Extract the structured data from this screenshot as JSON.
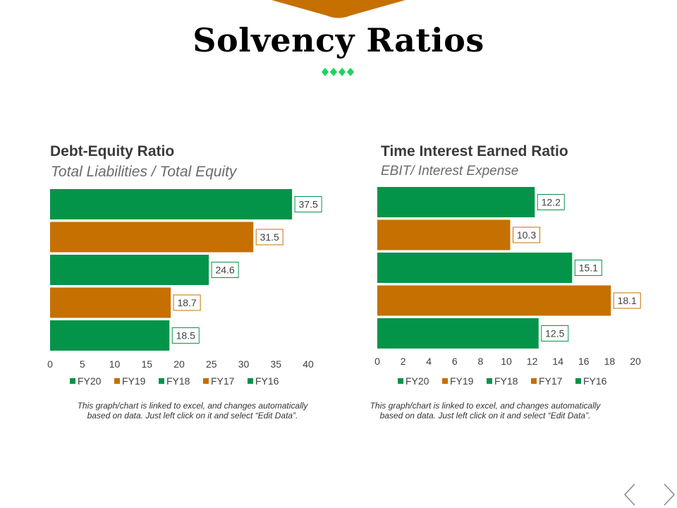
{
  "page": {
    "title": "Solvency Ratios"
  },
  "colors": {
    "green": "#03944a",
    "orange": "#c57000",
    "accent_diamond": "#1ad45a",
    "title_text": "#3a3a3a",
    "subtitle_text": "#6b6b6b"
  },
  "icons": {
    "prev": "chevron-left-icon",
    "next": "chevron-right-icon",
    "decor": "diamond-icon"
  },
  "chart_data": [
    {
      "type": "bar",
      "orientation": "horizontal",
      "title": "Debt-Equity Ratio",
      "subtitle": "Total Liabilities / Total Equity",
      "categories": [
        "FY20",
        "FY19",
        "FY18",
        "FY17",
        "FY16"
      ],
      "values": [
        37.5,
        31.5,
        24.6,
        18.7,
        18.5
      ],
      "value_labels": [
        "37.5",
        "31.5",
        "24.6",
        "18.7",
        "18.5"
      ],
      "bar_colors": [
        "#03944a",
        "#c57000",
        "#03944a",
        "#c57000",
        "#03944a"
      ],
      "xlim": [
        0,
        40
      ],
      "xticks": [
        "0",
        "5",
        "10",
        "15",
        "20",
        "25",
        "30",
        "35",
        "40"
      ],
      "grid": false,
      "legend_position": "bottom",
      "legend": [
        "FY20",
        "FY19",
        "FY18",
        "FY17",
        "FY16"
      ],
      "note_line1": "This graph/chart is linked to excel, and changes automatically",
      "note_line2": "based on data. Just left click on it and select “Edit Data”."
    },
    {
      "type": "bar",
      "orientation": "horizontal",
      "title": "Time Interest Earned Ratio",
      "subtitle": "EBIT/ Interest Expense",
      "categories": [
        "FY20",
        "FY19",
        "FY18",
        "FY17",
        "FY16"
      ],
      "values": [
        12.2,
        10.3,
        15.1,
        18.1,
        12.5
      ],
      "value_labels": [
        "12.2",
        "10.3",
        "15.1",
        "18.1",
        "12.5"
      ],
      "bar_colors": [
        "#03944a",
        "#c57000",
        "#03944a",
        "#c57000",
        "#03944a"
      ],
      "xlim": [
        0,
        20
      ],
      "xticks": [
        "0",
        "2",
        "4",
        "6",
        "8",
        "10",
        "12",
        "14",
        "16",
        "18",
        "20"
      ],
      "grid": false,
      "legend_position": "bottom",
      "legend": [
        "FY20",
        "FY19",
        "FY18",
        "FY17",
        "FY16"
      ],
      "note_line1": "This graph/chart is linked to excel, and changes automatically",
      "note_line2": "based on data. Just left click on it and select “Edit Data”."
    }
  ]
}
